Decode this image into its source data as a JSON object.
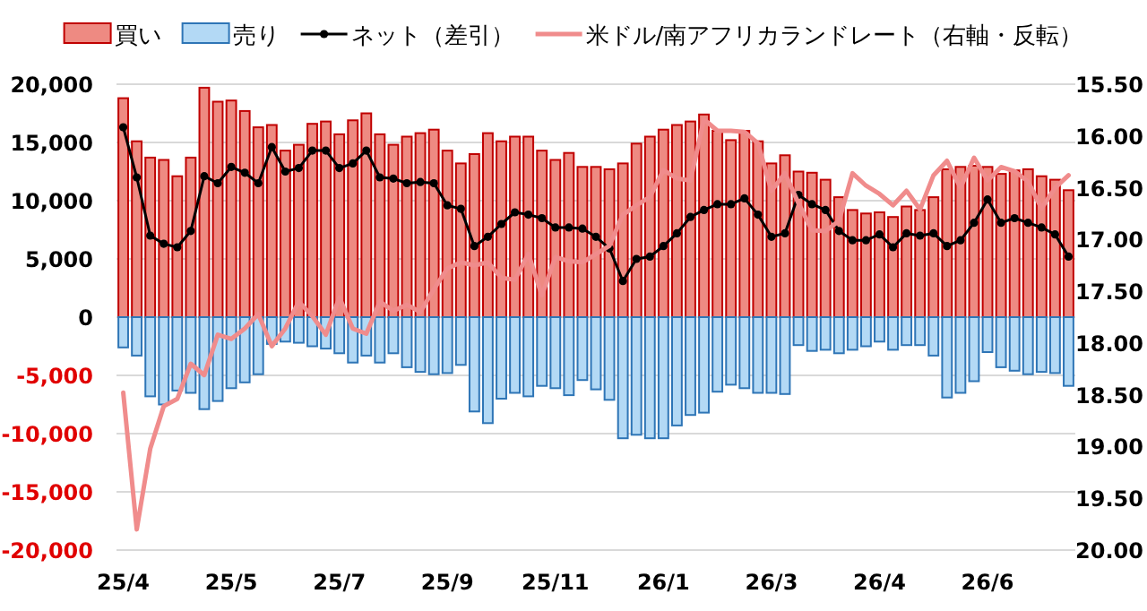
{
  "chart_data": {
    "type": "bar",
    "stacked": true,
    "legend": "top",
    "grid": "y",
    "categories": [
      "25/4",
      null,
      null,
      null,
      null,
      null,
      null,
      null,
      "25/5",
      null,
      null,
      null,
      null,
      null,
      null,
      null,
      "25/7",
      null,
      null,
      null,
      null,
      null,
      null,
      null,
      "25/9",
      null,
      null,
      null,
      null,
      null,
      null,
      null,
      "25/11",
      null,
      null,
      null,
      null,
      null,
      null,
      null,
      "26/1",
      null,
      null,
      null,
      null,
      null,
      null,
      null,
      "26/3",
      null,
      null,
      null,
      null,
      null,
      null,
      null,
      "26/4",
      null,
      null,
      null,
      null,
      null,
      null,
      null,
      "26/6",
      null,
      null,
      null,
      null,
      null,
      null
    ],
    "ylim": [
      -20000,
      20000
    ],
    "yticks": [
      {
        "value": -20000,
        "label": "-20,000"
      },
      {
        "value": -15000,
        "label": "-15,000"
      },
      {
        "value": -10000,
        "label": "-10,000"
      },
      {
        "value": -5000,
        "label": "-5,000"
      },
      {
        "value": 0,
        "label": "0"
      },
      {
        "value": 5000,
        "label": "5,000"
      },
      {
        "value": 10000,
        "label": "10,000"
      },
      {
        "value": 15000,
        "label": "15,000"
      },
      {
        "value": 20000,
        "label": "20,000"
      }
    ],
    "y2lim": [
      20.0,
      15.5
    ],
    "y2ticks": [
      {
        "value": 15.5,
        "label": "15.50"
      },
      {
        "value": 16.0,
        "label": "16.00"
      },
      {
        "value": 16.5,
        "label": "16.50"
      },
      {
        "value": 17.0,
        "label": "17.00"
      },
      {
        "value": 17.5,
        "label": "17.50"
      },
      {
        "value": 18.0,
        "label": "18.00"
      },
      {
        "value": 18.5,
        "label": "18.50"
      },
      {
        "value": 19.0,
        "label": "19.00"
      },
      {
        "value": 19.5,
        "label": "19.50"
      },
      {
        "value": 20.0,
        "label": "20.00"
      }
    ],
    "series": [
      {
        "name": "買い",
        "color": "#ee8a82",
        "values": [
          18800,
          15100,
          13700,
          13500,
          12100,
          13700,
          19700,
          18500,
          18600,
          17700,
          16300,
          16500,
          14300,
          14800,
          16600,
          16800,
          15700,
          16900,
          17500,
          15700,
          14800,
          15500,
          15800,
          16100,
          14300,
          13200,
          14000,
          15800,
          15100,
          15500,
          15500,
          14300,
          13500,
          14100,
          12900,
          12900,
          12700,
          13200,
          14900,
          15500,
          16100,
          16500,
          16800,
          17400,
          16000,
          15200,
          16000,
          15100,
          13200,
          13900,
          12500,
          12400,
          11800,
          10300,
          9200,
          8900,
          9000,
          8600,
          9500,
          9200,
          10300,
          12700,
          12900,
          13000,
          12900,
          12300,
          12600,
          12700,
          12100,
          11800,
          10900
        ]
      },
      {
        "name": "売り",
        "color": "#b3d9f5",
        "values": [
          -2600,
          -3300,
          -6800,
          -7500,
          -6300,
          -6500,
          -7900,
          -7200,
          -6100,
          -5600,
          -4900,
          -2300,
          -2100,
          -2200,
          -2500,
          -2700,
          -3100,
          -3900,
          -3300,
          -3900,
          -3100,
          -4300,
          -4700,
          -4900,
          -4800,
          -4100,
          -8100,
          -9100,
          -7000,
          -6500,
          -6800,
          -5900,
          -6100,
          -6700,
          -5400,
          -6200,
          -7100,
          -10400,
          -10100,
          -10400,
          -10400,
          -9300,
          -8400,
          -8200,
          -6400,
          -5800,
          -6100,
          -6500,
          -6500,
          -6600,
          -2400,
          -2900,
          -2800,
          -3100,
          -2800,
          -2500,
          -2100,
          -2800,
          -2400,
          -2400,
          -3300,
          -6900,
          -6500,
          -5500,
          -3000,
          -4300,
          -4600,
          -4900,
          -4700,
          -4800,
          -5900
        ]
      },
      {
        "name": "ネット（差引）",
        "type": "line",
        "color": "#000000",
        "marker": "circle",
        "values": [
          16300,
          12000,
          7000,
          6300,
          6000,
          7400,
          12100,
          11500,
          12900,
          12400,
          11500,
          14600,
          12500,
          12800,
          14300,
          14300,
          12800,
          13200,
          14300,
          12000,
          11900,
          11500,
          11600,
          11500,
          9600,
          9300,
          6100,
          6900,
          8000,
          9000,
          8800,
          8500,
          7700,
          7700,
          7600,
          6900,
          5900,
          3100,
          5000,
          5200,
          6100,
          7200,
          8600,
          9200,
          9700,
          9700,
          10200,
          8800,
          6900,
          7200,
          10500,
          9700,
          9200,
          7400,
          6600,
          6600,
          7100,
          6000,
          7200,
          7000,
          7200,
          6100,
          6600,
          8100,
          10100,
          8100,
          8500,
          8100,
          7700,
          7100,
          5200
        ]
      },
      {
        "name": "米ドル/南アフリカランドレート（右軸・反転）",
        "type": "line",
        "axis": "y2",
        "color": "#f08c8c",
        "values": [
          18.48,
          19.8,
          19.02,
          18.61,
          18.54,
          18.2,
          18.31,
          17.92,
          17.96,
          17.86,
          17.72,
          18.03,
          17.86,
          17.6,
          17.74,
          17.92,
          17.56,
          17.86,
          17.91,
          17.6,
          17.69,
          17.63,
          17.7,
          17.48,
          17.28,
          17.22,
          17.25,
          17.22,
          17.37,
          17.39,
          17.14,
          17.54,
          17.17,
          17.21,
          17.22,
          17.14,
          17.06,
          16.76,
          16.67,
          16.59,
          16.33,
          16.41,
          16.43,
          15.84,
          15.95,
          15.95,
          15.96,
          16.07,
          16.53,
          16.36,
          16.65,
          16.91,
          16.92,
          16.82,
          16.36,
          16.48,
          16.56,
          16.67,
          16.53,
          16.71,
          16.38,
          16.24,
          16.5,
          16.21,
          16.43,
          16.3,
          16.34,
          16.44,
          16.7,
          16.5,
          16.38
        ]
      }
    ]
  }
}
